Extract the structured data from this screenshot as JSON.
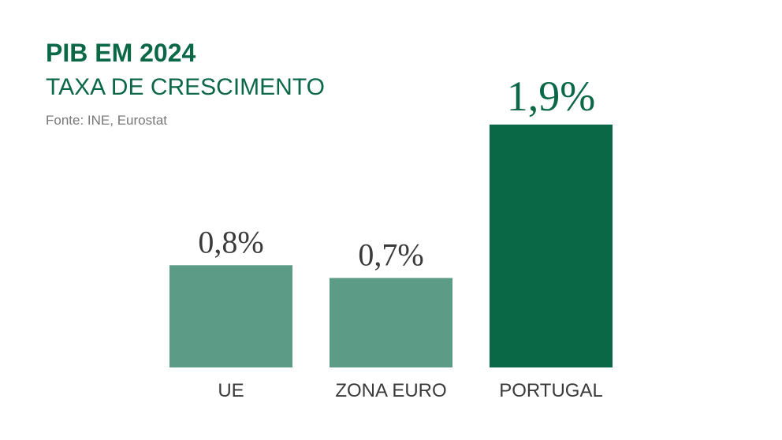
{
  "chart_data": {
    "type": "bar",
    "title": "PIB EM 2024",
    "subtitle": "TAXA DE CRESCIMENTO",
    "source": "Fonte: INE, Eurostat",
    "categories": [
      "UE",
      "ZONA EURO",
      "PORTUGAL"
    ],
    "values": [
      0.8,
      0.7,
      1.9
    ],
    "value_labels": [
      "0,8%",
      "0,7%",
      "1,9%"
    ],
    "colors": [
      "#5c9b85",
      "#5c9b85",
      "#0b6847"
    ]
  }
}
